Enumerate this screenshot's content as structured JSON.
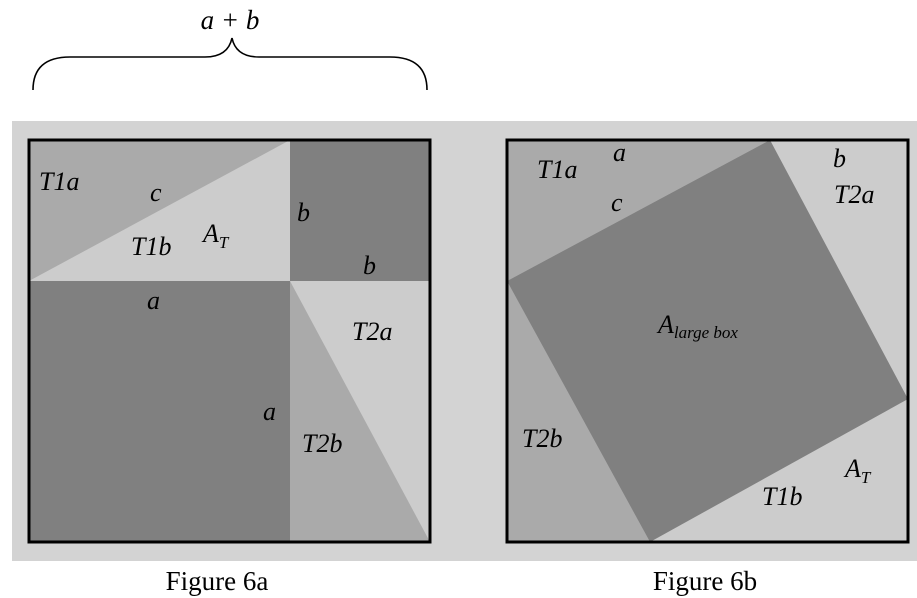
{
  "brace_label": "a + b",
  "colors": {
    "background_panel": "#d3d3d3",
    "light": "#cccccc",
    "mid": "#aaaaaa",
    "dark": "#808080",
    "border": "#000000"
  },
  "figure_a": {
    "caption": "Figure 6a",
    "labels": {
      "t1a": "T1a",
      "c": "c",
      "t1b": "T1b",
      "at_main": "A",
      "at_sub": "T",
      "b_vertical": "b",
      "b_horizontal": "b",
      "a_horizontal": "a",
      "t2a": "T2a",
      "a_vertical": "a",
      "t2b": "T2b"
    }
  },
  "figure_b": {
    "caption": "Figure 6b",
    "labels": {
      "t1a": "T1a",
      "a": "a",
      "c": "c",
      "b": "b",
      "t2a": "T2a",
      "large_main": "A",
      "large_sub": "large box",
      "t2b": "T2b",
      "at_main": "A",
      "at_sub": "T",
      "t1b": "T1b"
    }
  }
}
